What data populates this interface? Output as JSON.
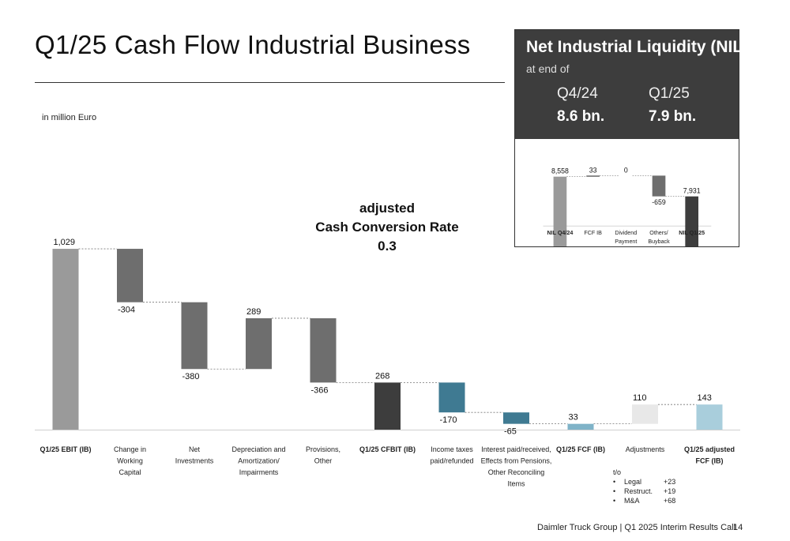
{
  "title": "Q1/25 Cash Flow Industrial Business",
  "unit_note": "in million Euro",
  "cash_conversion": {
    "line1": "adjusted",
    "line2": "Cash Conversion Rate",
    "value": "0.3"
  },
  "nil_panel": {
    "title": "Net Industrial Liquidity (NIL)",
    "subtitle": "at end of",
    "periods": [
      {
        "period": "Q4/24",
        "value": "8.6 bn."
      },
      {
        "period": "Q1/25",
        "value": "7.9 bn."
      }
    ]
  },
  "adjustments_note": {
    "header": "t/o",
    "items": [
      {
        "bullet": "•",
        "label": "Legal",
        "value": "+23"
      },
      {
        "bullet": "•",
        "label": "Restruct.",
        "value": "+19"
      },
      {
        "bullet": "•",
        "label": "M&A",
        "value": "+68"
      }
    ]
  },
  "footer": {
    "text": "Daimler Truck Group | Q1 2025 Interim Results Call",
    "page": "14"
  },
  "colors": {
    "total_gray": "#9a9a9a",
    "step_gray": "#6e6e6e",
    "dark": "#3d3d3d",
    "teal": "#3f7a92",
    "light_blue": "#a9cedc",
    "light_gray": "#e8e8e8"
  },
  "chart_data": [
    {
      "type": "bar",
      "subtype": "waterfall",
      "title": "",
      "ylabel": "",
      "categories": [
        {
          "lines": [
            "Q1/25 EBIT (IB)"
          ],
          "bold": true
        },
        {
          "lines": [
            "Change in",
            "Working",
            "Capital"
          ],
          "bold": false
        },
        {
          "lines": [
            "Net",
            "Investments"
          ],
          "bold": false
        },
        {
          "lines": [
            "Depreciation and",
            "Amortization/",
            "Impairments"
          ],
          "bold": false
        },
        {
          "lines": [
            "Provisions,",
            "Other"
          ],
          "bold": false
        },
        {
          "lines": [
            "Q1/25 CFBIT (IB)"
          ],
          "bold": true
        },
        {
          "lines": [
            "Income taxes",
            "paid/refunded"
          ],
          "bold": false
        },
        {
          "lines": [
            "Interest paid/received,",
            "Effects from Pensions,",
            "Other Reconciling",
            "Items"
          ],
          "bold": false
        },
        {
          "lines": [
            "Q1/25 FCF (IB)"
          ],
          "bold": true
        },
        {
          "lines": [
            "Adjustments"
          ],
          "bold": false
        },
        {
          "lines": [
            "Q1/25 adjusted",
            "FCF (IB)"
          ],
          "bold": true
        }
      ],
      "values": [
        1029,
        -304,
        -380,
        289,
        -366,
        268,
        -170,
        -65,
        33,
        110,
        143
      ],
      "labels": [
        "1,029",
        "-304",
        "-380",
        "289",
        "-366",
        "268",
        "-170",
        "-65",
        "33",
        "110",
        "143"
      ],
      "kinds": [
        "total",
        "delta",
        "delta",
        "delta",
        "delta",
        "total",
        "delta",
        "delta",
        "total",
        "delta",
        "total"
      ],
      "bar_colors": [
        "#9a9a9a",
        "#6e6e6e",
        "#6e6e6e",
        "#6e6e6e",
        "#6e6e6e",
        "#3d3d3d",
        "#3f7a92",
        "#3f7a92",
        "#7fb3c8",
        "#e8e8e8",
        "#a9cedc"
      ]
    },
    {
      "type": "bar",
      "subtype": "waterfall",
      "title": "",
      "categories": [
        {
          "lines": [
            "NIL Q4/24"
          ],
          "bold": true
        },
        {
          "lines": [
            "FCF IB"
          ],
          "bold": false
        },
        {
          "lines": [
            "Dividend",
            "Payment"
          ],
          "bold": false
        },
        {
          "lines": [
            "Others/",
            "Buyback"
          ],
          "bold": false
        },
        {
          "lines": [
            "NIL Q1/25"
          ],
          "bold": true
        }
      ],
      "values": [
        8558,
        33,
        0,
        -659,
        7931
      ],
      "labels": [
        "8,558",
        "33",
        "0",
        "-659",
        "7,931"
      ],
      "kinds": [
        "total",
        "delta",
        "delta",
        "delta",
        "total"
      ],
      "bar_colors": [
        "#9a9a9a",
        "#6e6e6e",
        "#6e6e6e",
        "#6e6e6e",
        "#3d3d3d"
      ]
    }
  ]
}
